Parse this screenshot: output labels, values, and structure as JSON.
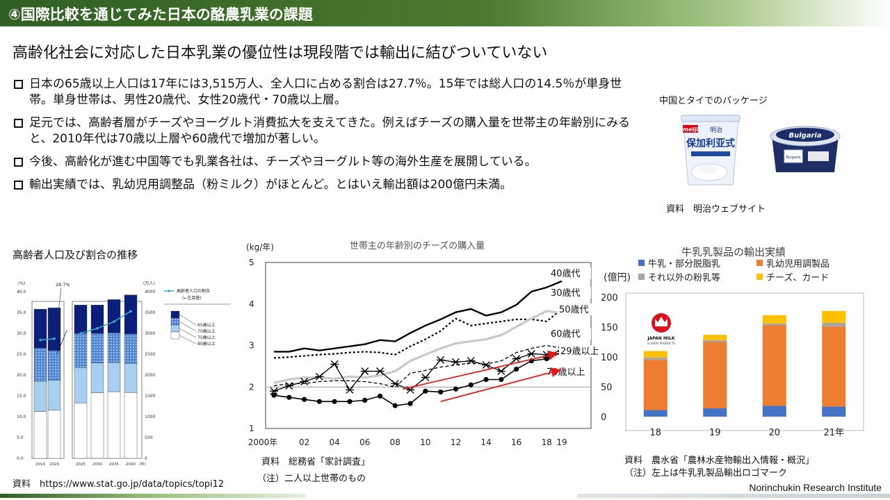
{
  "header": {
    "title": "④国際比較を通じてみた日本の酪農乳業の課題"
  },
  "subtitle": "高齢化社会に対応した日本乳業の優位性は現段階では輸出に結びついていない",
  "bullets": [
    "日本の65歳以上人口は17年には3,515万人、全人口に占める割合は27.7％。15年では総人口の14.5％が単身世帯。単身世帯は、男性20歳代、女性20歳代・70歳以上層。",
    "足元では、高齢者層がチーズやヨーグルト消費拡大を支えてきた。例えばチーズの購入量を世帯主の年齢別にみると、2010年代は70歳以上層や60歳代で増加が著しい。",
    "今後、高齢化が進む中国等でも乳業各社は、チーズやヨーグルト等の海外生産を展開している。",
    "輸出実績では、乳幼児用調整品（粉ミルク）がほとんど。とはいえ輸出額は200億円未満。"
  ],
  "packages": {
    "title": "中国とタイでのパッケージ",
    "source": "資料　明治ウェブサイト",
    "product1_logo": "meiji",
    "product1_name": "明治",
    "product1_text": "保加利亚式",
    "product2_brand": "Bulgaria",
    "product2_small": "Bulgaria"
  },
  "population": {
    "title": "高齢者人口及び割合の推移",
    "source": "資料　https://www.stat.go.jp/data/topics/topi12",
    "left_unit": "(%)",
    "right_unit": "(万人)",
    "ratio_label": "28.7%",
    "y_left_ticks": [
      "40.0",
      "35.0",
      "30.0",
      "25.0",
      "20.0",
      "15.0",
      "10.0",
      "5.0",
      "0.0"
    ],
    "y_right_ticks": [
      "4000",
      "3500",
      "3000",
      "2500",
      "2000",
      "1500",
      "1000",
      "500",
      "0"
    ],
    "x_labels": [
      "2019",
      "2020",
      "2025",
      "2030",
      "2035",
      "2040"
    ],
    "x_suffix": "(年)",
    "legend_line": "高齢者人口の割合",
    "legend_line_sub": "(←左目盛)",
    "legend_items": [
      "65歳以上",
      "70歳以上",
      "75歳以上",
      "80歳以上"
    ],
    "colors": {
      "80": "#ffffff",
      "75": "#a9cff0",
      "70": "#4f86d6",
      "65": "#0b1f7a",
      "line": "#3ba8c4"
    }
  },
  "cheese": {
    "title": "世帯主の年齢別のチーズの購入量",
    "unit": "(kg/年)",
    "source": "資料　総務省「家計調査」",
    "note": "（注）二人以上世帯のもの",
    "x_tick_labels": [
      "2000年",
      "02",
      "04",
      "06",
      "08",
      "10",
      "12",
      "14",
      "16",
      "18",
      "19"
    ],
    "y_tick_labels": [
      "5",
      "4",
      "3",
      "2",
      "1"
    ],
    "series_labels": [
      "40歳代",
      "30歳代",
      "50歳代",
      "60歳代",
      "29歳以上",
      "70歳以上"
    ]
  },
  "exports": {
    "title": "牛乳乳製品の輸出実績",
    "unit": "(億円)",
    "source": "資料　農水省「農林水産物輸出入情報・概況」",
    "note": "（注）左上は牛乳乳製品輸出ロゴマーク",
    "logo_text": "JAPAN MILK",
    "logo_sub": "& DAIRY PRODUCTS",
    "y_tick_labels": [
      "200",
      "150",
      "100",
      "50",
      "0"
    ],
    "legend": [
      "牛乳・部分脱脂乳",
      "乳幼児用調製品",
      "それ以外の粉乳等",
      "チーズ、カード"
    ]
  },
  "chart_data": [
    {
      "type": "line",
      "title": "世帯主の年齢別のチーズの購入量",
      "ylabel": "(kg/年)",
      "ylim": [
        1,
        5
      ],
      "x": [
        2000,
        2001,
        2002,
        2003,
        2004,
        2005,
        2006,
        2007,
        2008,
        2009,
        2010,
        2011,
        2012,
        2013,
        2014,
        2015,
        2016,
        2017,
        2018,
        2019
      ],
      "series": [
        {
          "name": "40歳代",
          "values": [
            2.85,
            2.85,
            2.93,
            2.88,
            2.93,
            2.98,
            3.03,
            3.13,
            3.1,
            3.3,
            3.48,
            3.63,
            3.8,
            3.88,
            3.72,
            3.8,
            3.98,
            4.3,
            4.4,
            4.55
          ]
        },
        {
          "name": "30歳代",
          "values": [
            2.7,
            2.72,
            2.75,
            2.78,
            2.8,
            2.83,
            2.85,
            2.83,
            2.78,
            2.98,
            3.15,
            3.35,
            3.65,
            3.48,
            3.53,
            3.58,
            3.63,
            3.63,
            3.58,
            3.88
          ]
        },
        {
          "name": "50歳代",
          "values": [
            2.1,
            2.18,
            2.23,
            2.23,
            2.2,
            2.25,
            2.23,
            2.28,
            2.38,
            2.63,
            2.78,
            2.93,
            3.05,
            3.1,
            3.15,
            3.25,
            3.45,
            3.65,
            3.83,
            3.78
          ]
        },
        {
          "name": "60歳代",
          "values": [
            2.03,
            2.08,
            2.08,
            2.13,
            2.15,
            2.15,
            2.13,
            2.08,
            2.0,
            2.33,
            2.4,
            2.48,
            2.53,
            2.58,
            2.55,
            2.63,
            2.83,
            2.93,
            3.0,
            2.93
          ]
        },
        {
          "name": "29歳以上",
          "values": [
            1.9,
            2.03,
            2.13,
            2.25,
            2.55,
            1.93,
            2.38,
            2.38,
            2.08,
            1.93,
            2.23,
            2.65,
            2.6,
            2.63,
            2.53,
            2.38,
            2.68,
            2.8,
            2.78,
            2.88
          ]
        },
        {
          "name": "70歳以上",
          "values": [
            1.8,
            1.75,
            1.7,
            1.65,
            1.65,
            1.65,
            1.68,
            1.78,
            1.55,
            1.6,
            1.9,
            1.88,
            1.95,
            2.05,
            2.18,
            2.18,
            2.43,
            2.63,
            2.68,
            2.83
          ]
        }
      ]
    },
    {
      "type": "bar",
      "stacked": true,
      "title": "牛乳乳製品の輸出実績",
      "ylabel": "(億円)",
      "ylim": [
        0,
        200
      ],
      "categories": [
        "18",
        "19",
        "20",
        "21年"
      ],
      "series": [
        {
          "name": "牛乳・部分脱脂乳",
          "values": [
            11,
            14,
            18,
            17
          ]
        },
        {
          "name": "乳幼児用調製品",
          "values": [
            84,
            111,
            135,
            134
          ]
        },
        {
          "name": "それ以外の粉乳等",
          "values": [
            4,
            3,
            3,
            6
          ]
        },
        {
          "name": "チーズ、カード",
          "values": [
            11,
            9,
            14,
            20
          ]
        }
      ],
      "colors": [
        "#4472c4",
        "#ed7d31",
        "#a5a5a5",
        "#ffc000"
      ]
    },
    {
      "type": "bar",
      "stacked": true,
      "title": "高齢者人口及び割合の推移",
      "categories": [
        "2019",
        "2020",
        "2025",
        "2030",
        "2035",
        "2040"
      ],
      "ylim": [
        0,
        4000
      ],
      "series": [
        {
          "name": "80歳以上",
          "values": [
            1125,
            1160,
            1330,
            1570,
            1600,
            1580
          ]
        },
        {
          "name": "75歳以上",
          "values": [
            725,
            710,
            850,
            720,
            700,
            700
          ]
        },
        {
          "name": "70歳以上",
          "values": [
            800,
            720,
            820,
            710,
            710,
            710
          ]
        },
        {
          "name": "65歳以上",
          "values": [
            930,
            1020,
            680,
            680,
            800,
            930
          ]
        },
        {
          "name": "高齢者人口の割合",
          "values": [
            28.4,
            28.7,
            30.0,
            31.2,
            32.8,
            35.3
          ]
        }
      ]
    }
  ]
}
